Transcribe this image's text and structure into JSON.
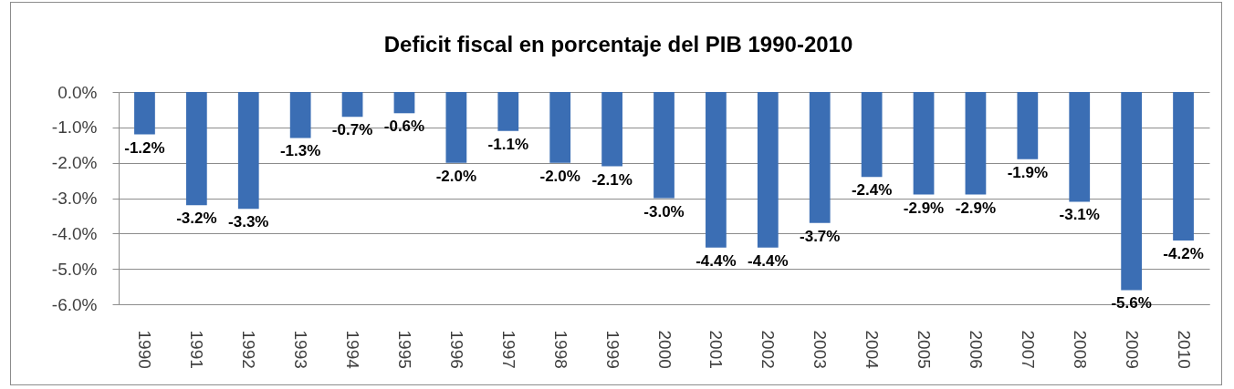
{
  "chart_data": {
    "type": "bar",
    "title": "Deficit fiscal en porcentaje del PIB 1990-2010",
    "categories": [
      "1990",
      "1991",
      "1992",
      "1993",
      "1994",
      "1995",
      "1996",
      "1997",
      "1998",
      "1999",
      "2000",
      "2001",
      "2002",
      "2003",
      "2004",
      "2005",
      "2006",
      "2007",
      "2008",
      "2009",
      "2010"
    ],
    "values": [
      -1.2,
      -3.2,
      -3.3,
      -1.3,
      -0.7,
      -0.6,
      -2.0,
      -1.1,
      -2.0,
      -2.1,
      -3.0,
      -4.4,
      -4.4,
      -3.7,
      -2.4,
      -2.9,
      -2.9,
      -1.9,
      -3.1,
      -5.6,
      -4.2
    ],
    "value_labels": [
      "-1.2%",
      "-3.2%",
      "-3.3%",
      "-1.3%",
      "-0.7%",
      "-0.6%",
      "-2.0%",
      "-1.1%",
      "-2.0%",
      "-2.1%",
      "-3.0%",
      "-4.4%",
      "-4.4%",
      "-3.7%",
      "-2.4%",
      "-2.9%",
      "-2.9%",
      "-1.9%",
      "-3.1%",
      "-5.6%",
      "-4.2%"
    ],
    "color": "#3b6eb4",
    "ylim": [
      -6,
      0
    ],
    "yticks": [
      {
        "value": 0,
        "label": "0.0%"
      },
      {
        "value": -1,
        "label": "-1.0%"
      },
      {
        "value": -2,
        "label": "-2.0%"
      },
      {
        "value": -3,
        "label": "-3.0%"
      },
      {
        "value": -4,
        "label": "-4.0%"
      },
      {
        "value": -5,
        "label": "-5.0%"
      },
      {
        "value": -6,
        "label": "-6.0%"
      }
    ],
    "grid": "y"
  }
}
